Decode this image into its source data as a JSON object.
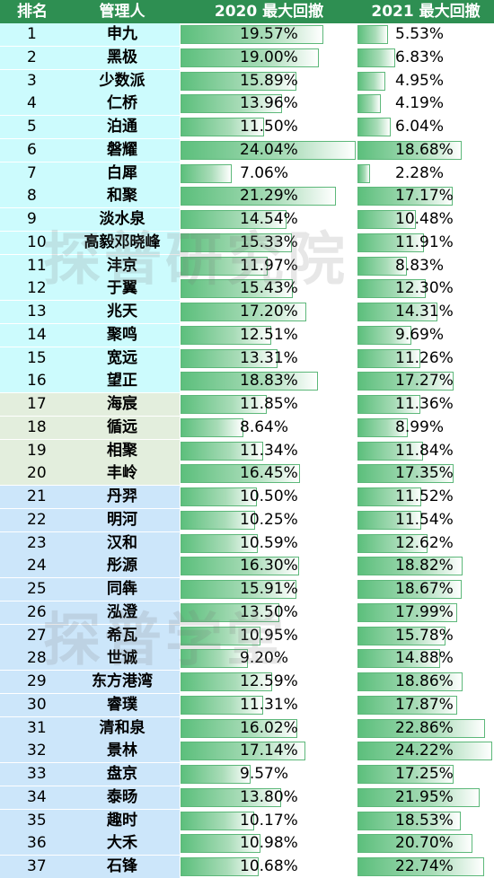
{
  "headers": {
    "rank": "排名",
    "manager": "管理人",
    "y2020": "2020 最大回撤",
    "y2021": "2021 最大回撤"
  },
  "watermarks": [
    "探普研究院",
    "探普学堂"
  ],
  "colors": {
    "header": "#2e8f52",
    "group1": "#ccfbfd",
    "group2": "#e3eedd",
    "group3": "#cce6fa",
    "bar": "#5cbf7c"
  },
  "chart_data": {
    "type": "table",
    "columns": [
      "排名",
      "管理人",
      "2020 最大回撤",
      "2021 最大回撤"
    ],
    "rows": [
      {
        "rank": "1",
        "name": "申九",
        "v2020": 19.57,
        "v2021": 5.53,
        "group": 1
      },
      {
        "rank": "2",
        "name": "黑极",
        "v2020": 19.0,
        "v2021": 6.83,
        "group": 1
      },
      {
        "rank": "3",
        "name": "少数派",
        "v2020": 15.89,
        "v2021": 4.95,
        "group": 1
      },
      {
        "rank": "4",
        "name": "仁桥",
        "v2020": 13.96,
        "v2021": 4.19,
        "group": 1
      },
      {
        "rank": "5",
        "name": "泊通",
        "v2020": 11.5,
        "v2021": 6.04,
        "group": 1
      },
      {
        "rank": "6",
        "name": "磐耀",
        "v2020": 24.04,
        "v2021": 18.68,
        "group": 1
      },
      {
        "rank": "7",
        "name": "白犀",
        "v2020": 7.06,
        "v2021": 2.28,
        "group": 1
      },
      {
        "rank": "8",
        "name": "和聚",
        "v2020": 21.29,
        "v2021": 17.17,
        "group": 1
      },
      {
        "rank": "9",
        "name": "淡水泉",
        "v2020": 14.54,
        "v2021": 10.48,
        "group": 1
      },
      {
        "rank": "10",
        "name": "高毅邓晓峰",
        "v2020": 15.33,
        "v2021": 11.91,
        "group": 1
      },
      {
        "rank": "11",
        "name": "沣京",
        "v2020": 11.97,
        "v2021": 8.83,
        "group": 1
      },
      {
        "rank": "12",
        "name": "于翼",
        "v2020": 15.43,
        "v2021": 12.3,
        "group": 1
      },
      {
        "rank": "13",
        "name": "兆天",
        "v2020": 17.2,
        "v2021": 14.31,
        "group": 1
      },
      {
        "rank": "14",
        "name": "聚鸣",
        "v2020": 12.51,
        "v2021": 9.69,
        "group": 1
      },
      {
        "rank": "15",
        "name": "宽远",
        "v2020": 13.31,
        "v2021": 11.26,
        "group": 1
      },
      {
        "rank": "16",
        "name": "望正",
        "v2020": 18.83,
        "v2021": 17.27,
        "group": 1
      },
      {
        "rank": "17",
        "name": "海宸",
        "v2020": 11.85,
        "v2021": 11.36,
        "group": 2
      },
      {
        "rank": "18",
        "name": "循远",
        "v2020": 8.64,
        "v2021": 8.99,
        "group": 2
      },
      {
        "rank": "19",
        "name": "相聚",
        "v2020": 11.34,
        "v2021": 11.84,
        "group": 2
      },
      {
        "rank": "20",
        "name": "丰岭",
        "v2020": 16.45,
        "v2021": 17.35,
        "group": 2
      },
      {
        "rank": "21",
        "name": "丹羿",
        "v2020": 10.5,
        "v2021": 11.52,
        "group": 3
      },
      {
        "rank": "22",
        "name": "明河",
        "v2020": 10.25,
        "v2021": 11.54,
        "group": 3
      },
      {
        "rank": "23",
        "name": "汉和",
        "v2020": 10.59,
        "v2021": 12.62,
        "group": 3
      },
      {
        "rank": "24",
        "name": "彤源",
        "v2020": 16.3,
        "v2021": 18.82,
        "group": 3
      },
      {
        "rank": "25",
        "name": "同犇",
        "v2020": 15.91,
        "v2021": 18.67,
        "group": 3
      },
      {
        "rank": "26",
        "name": "泓澄",
        "v2020": 13.5,
        "v2021": 17.99,
        "group": 3
      },
      {
        "rank": "27",
        "name": "希瓦",
        "v2020": 10.95,
        "v2021": 15.78,
        "group": 3
      },
      {
        "rank": "28",
        "name": "世诚",
        "v2020": 9.2,
        "v2021": 14.88,
        "group": 3
      },
      {
        "rank": "29",
        "name": "东方港湾",
        "v2020": 12.59,
        "v2021": 18.86,
        "group": 3
      },
      {
        "rank": "30",
        "name": "睿璞",
        "v2020": 11.31,
        "v2021": 17.87,
        "group": 3
      },
      {
        "rank": "31",
        "name": "清和泉",
        "v2020": 16.02,
        "v2021": 22.86,
        "group": 3
      },
      {
        "rank": "32",
        "name": "景林",
        "v2020": 17.14,
        "v2021": 24.22,
        "group": 3
      },
      {
        "rank": "33",
        "name": "盘京",
        "v2020": 9.57,
        "v2021": 17.25,
        "group": 3
      },
      {
        "rank": "34",
        "name": "泰旸",
        "v2020": 13.8,
        "v2021": 21.95,
        "group": 3
      },
      {
        "rank": "35",
        "name": "趣时",
        "v2020": 10.17,
        "v2021": 18.53,
        "group": 3
      },
      {
        "rank": "36",
        "name": "大禾",
        "v2020": 10.98,
        "v2021": 20.7,
        "group": 3
      },
      {
        "rank": "37",
        "name": "石锋",
        "v2020": 10.68,
        "v2021": 22.74,
        "group": 3
      }
    ]
  }
}
